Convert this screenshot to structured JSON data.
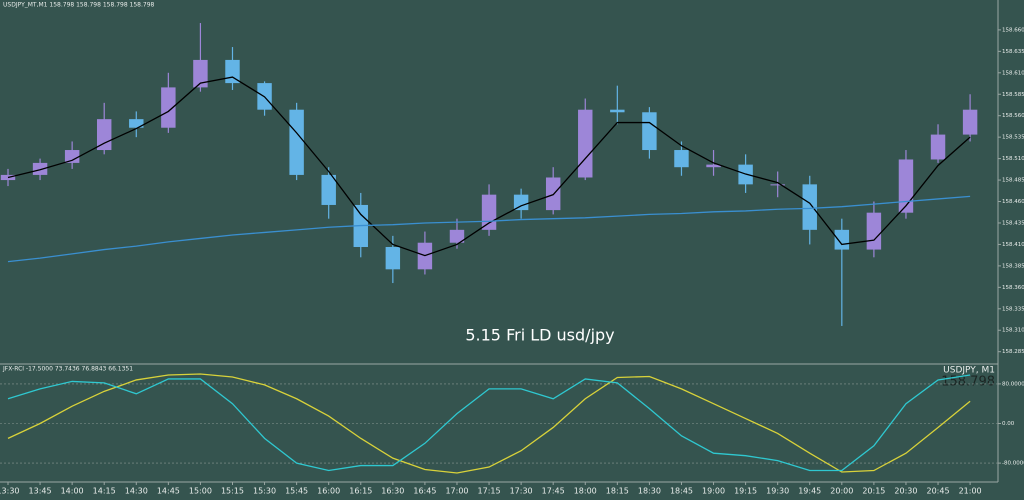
{
  "chart_data": [
    {
      "type": "candlestick",
      "title": "USDJPY_MT,M1 158.798 158.798 158.798 158.798",
      "annotation": "5.15 Fri LD usd/jpy",
      "categories": [
        "13:30",
        "13:45",
        "14:00",
        "14:15",
        "14:30",
        "14:45",
        "15:00",
        "15:15",
        "15:30",
        "15:45",
        "16:00",
        "16:15",
        "16:30",
        "16:45",
        "17:00",
        "17:15",
        "17:30",
        "17:45",
        "18:00",
        "18:15",
        "18:30",
        "18:45",
        "19:00",
        "19:15",
        "19:30",
        "19:45",
        "20:00",
        "20:15",
        "20:30",
        "20:45",
        "21:00"
      ],
      "open": [
        158.485,
        158.491,
        158.505,
        158.52,
        158.556,
        158.546,
        158.593,
        158.625,
        158.598,
        158.567,
        158.491,
        158.456,
        158.407,
        158.381,
        158.412,
        158.427,
        158.468,
        158.45,
        158.488,
        158.567,
        158.564,
        158.52,
        158.5,
        158.503,
        158.48,
        158.48,
        158.427,
        158.404,
        158.447,
        158.509,
        158.538
      ],
      "high": [
        158.498,
        158.51,
        158.53,
        158.575,
        158.565,
        158.61,
        158.668,
        158.64,
        158.6,
        158.575,
        158.5,
        158.47,
        158.42,
        158.425,
        158.44,
        158.48,
        158.475,
        158.5,
        158.58,
        158.595,
        158.57,
        158.53,
        158.52,
        158.515,
        158.495,
        158.49,
        158.44,
        158.46,
        158.52,
        158.55,
        158.585
      ],
      "low": [
        158.478,
        158.485,
        158.498,
        158.515,
        158.535,
        158.54,
        158.588,
        158.59,
        158.56,
        158.485,
        158.44,
        158.395,
        158.365,
        158.375,
        158.405,
        158.42,
        158.44,
        158.445,
        158.485,
        158.55,
        158.51,
        158.49,
        158.49,
        158.47,
        158.465,
        158.41,
        158.315,
        158.395,
        158.44,
        158.505,
        158.53
      ],
      "close": [
        158.491,
        158.505,
        158.52,
        158.556,
        158.546,
        158.593,
        158.625,
        158.598,
        158.567,
        158.491,
        158.456,
        158.407,
        158.381,
        158.412,
        158.427,
        158.468,
        158.45,
        158.488,
        158.567,
        158.564,
        158.52,
        158.5,
        158.503,
        158.48,
        158.48,
        158.427,
        158.404,
        158.447,
        158.509,
        158.538,
        158.567
      ],
      "up_color": "#9d86d8",
      "down_color": "#63b4e6",
      "lines": [
        {
          "color": "#000000",
          "values": [
            158.488,
            158.497,
            158.508,
            158.528,
            158.545,
            158.565,
            158.598,
            158.605,
            158.582,
            158.54,
            158.495,
            158.445,
            158.41,
            158.397,
            158.41,
            158.435,
            158.455,
            158.468,
            158.51,
            158.552,
            158.552,
            158.525,
            158.505,
            158.492,
            158.482,
            158.458,
            158.41,
            158.415,
            158.455,
            158.502,
            158.535
          ]
        },
        {
          "color": "#3a8fd0",
          "values": [
            158.39,
            158.394,
            158.399,
            158.404,
            158.408,
            158.413,
            158.417,
            158.421,
            158.424,
            158.427,
            158.43,
            158.432,
            158.433,
            158.435,
            158.436,
            158.437,
            158.439,
            158.44,
            158.441,
            158.443,
            158.445,
            158.446,
            158.448,
            158.449,
            158.451,
            158.452,
            158.454,
            158.457,
            158.46,
            158.463,
            158.466
          ]
        }
      ],
      "ylim": [
        158.273,
        158.689
      ],
      "yticks": [
        158.285,
        {
          "value": 158.31,
          "label": "158.310"
        },
        158.335,
        {
          "value": 158.36,
          "label": "158.360"
        },
        158.385,
        {
          "value": 158.41,
          "label": "158.410"
        },
        158.435,
        {
          "value": 158.46,
          "label": "158.460"
        },
        158.485,
        {
          "value": 158.51,
          "label": "158.510"
        },
        158.535,
        {
          "value": 158.56,
          "label": "158.560"
        },
        158.585,
        {
          "value": 158.61,
          "label": "158.610"
        },
        158.635,
        {
          "value": 158.66,
          "label": "158.660"
        }
      ],
      "background": "#35544f"
    },
    {
      "type": "line",
      "title": "JFX-RCI -17.5000 73.7436 76.8843 66.1351",
      "symbol": "USDJPY, M1",
      "price": 158.798,
      "lines": [
        {
          "color": "#d8d23a",
          "values": [
            -30,
            0,
            35,
            65,
            88,
            98,
            100,
            94,
            78,
            50,
            15,
            -30,
            -70,
            -93,
            -100,
            -88,
            -55,
            -8,
            50,
            93,
            95,
            70,
            40,
            10,
            -20,
            -60,
            -98,
            -95,
            -60,
            -8,
            45
          ]
        },
        {
          "color": "#2fc8d0",
          "values": [
            50,
            70,
            85,
            82,
            60,
            90,
            90,
            40,
            -30,
            -80,
            -95,
            -85,
            -85,
            -40,
            20,
            70,
            70,
            50,
            90,
            82,
            30,
            -25,
            -60,
            -65,
            -75,
            -95,
            -95,
            -45,
            40,
            88,
            98
          ]
        }
      ],
      "ylim": [
        -100,
        100
      ],
      "yticks": [
        {
          "value": 80,
          "label": "80.0000"
        },
        {
          "value": 0,
          "label": "0.00"
        },
        {
          "value": -80,
          "label": "-80.0000"
        }
      ],
      "grid": true
    }
  ]
}
